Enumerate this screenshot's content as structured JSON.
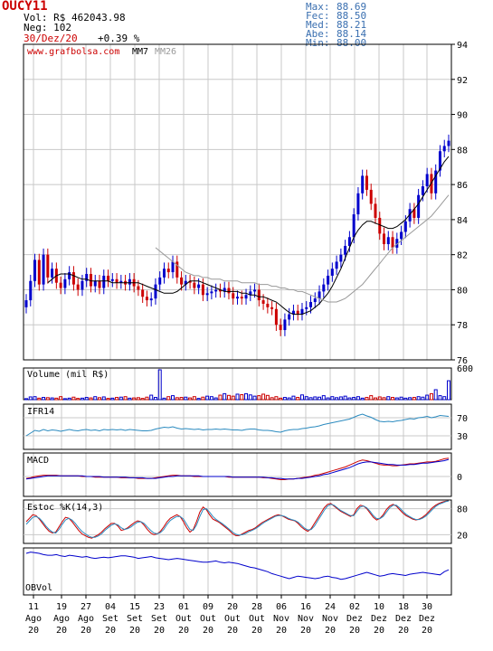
{
  "header": {
    "ticker": "OUCY11",
    "volume": "Vol: R$ 462043.98",
    "trades": "Neg: 102",
    "date": "30/Dez/20",
    "change": "+0.39 %",
    "stats": [
      {
        "label": "Max:",
        "value": "88.69"
      },
      {
        "label": "Fec:",
        "value": "88.50"
      },
      {
        "label": "Med:",
        "value": "88.21"
      },
      {
        "label": "Abe:",
        "value": "88.14"
      },
      {
        "label": "Min:",
        "value": "88.00"
      }
    ]
  },
  "colors": {
    "up": "#0000cc",
    "down": "#cc0000",
    "grid": "#c8c8c8",
    "stats_text": "#3a6fb0",
    "ifr_line": "#2a8abf",
    "mm7": "#000000",
    "mm26": "#999999"
  },
  "chart_data": [
    {
      "type": "candlestick",
      "title": "",
      "watermark": "www.grafbolsa.com",
      "legend": [
        {
          "name": "MM7",
          "color": "#000000"
        },
        {
          "name": "MM26",
          "color": "#999999"
        }
      ],
      "ylim": [
        76,
        94
      ],
      "yticks": [
        "76",
        "78",
        "80",
        "82",
        "84",
        "86",
        "88",
        "90",
        "92",
        "94"
      ],
      "grid": true,
      "x_labels": [
        {
          "day": "11",
          "month": "Ago",
          "year": "20"
        },
        {
          "day": "19",
          "month": "Ago",
          "year": "20"
        },
        {
          "day": "27",
          "month": "Ago",
          "year": "20"
        },
        {
          "day": "04",
          "month": "Set",
          "year": "20"
        },
        {
          "day": "15",
          "month": "Set",
          "year": "20"
        },
        {
          "day": "23",
          "month": "Set",
          "year": "20"
        },
        {
          "day": "01",
          "month": "Out",
          "year": "20"
        },
        {
          "day": "09",
          "month": "Out",
          "year": "20"
        },
        {
          "day": "20",
          "month": "Out",
          "year": "20"
        },
        {
          "day": "28",
          "month": "Out",
          "year": "20"
        },
        {
          "day": "06",
          "month": "Nov",
          "year": "20"
        },
        {
          "day": "16",
          "month": "Nov",
          "year": "20"
        },
        {
          "day": "24",
          "month": "Nov",
          "year": "20"
        },
        {
          "day": "02",
          "month": "Dez",
          "year": "20"
        },
        {
          "day": "10",
          "month": "Dez",
          "year": "20"
        },
        {
          "day": "18",
          "month": "Dez",
          "year": "20"
        },
        {
          "day": "30",
          "month": "Dez",
          "year": "20"
        }
      ],
      "closes": [
        79.4,
        80.5,
        81.7,
        80.3,
        82.0,
        80.7,
        81.2,
        80.4,
        80.1,
        80.6,
        81.0,
        80.3,
        80.0,
        80.5,
        80.9,
        80.2,
        80.5,
        80.1,
        80.8,
        80.5,
        80.6,
        80.4,
        80.5,
        80.3,
        80.6,
        80.2,
        80.0,
        79.6,
        79.4,
        79.5,
        80.3,
        80.7,
        81.2,
        81.0,
        81.6,
        80.7,
        80.3,
        80.5,
        80.4,
        80.1,
        80.3,
        79.7,
        79.8,
        79.9,
        80.0,
        79.9,
        80.1,
        79.8,
        79.5,
        79.6,
        79.5,
        79.7,
        79.9,
        80.0,
        79.4,
        79.2,
        79.0,
        78.9,
        78.0,
        77.7,
        78.3,
        78.6,
        78.8,
        78.6,
        78.9,
        79.0,
        79.3,
        79.5,
        79.9,
        80.3,
        80.8,
        81.2,
        81.6,
        82.0,
        82.5,
        83.0,
        84.3,
        85.5,
        86.5,
        85.7,
        84.9,
        84.1,
        83.2,
        82.6,
        83.0,
        82.4,
        82.9,
        83.3,
        83.9,
        84.6,
        84.1,
        85.4,
        85.9,
        86.6,
        85.5,
        86.8,
        87.9,
        88.2,
        88.5
      ],
      "mm7": [
        80.4,
        80.6,
        80.8,
        80.9,
        80.9,
        80.9,
        80.8,
        80.7,
        80.6,
        80.6,
        80.5,
        80.5,
        80.5,
        80.5,
        80.5,
        80.4,
        80.4,
        80.4,
        80.4,
        80.4,
        80.4,
        80.4,
        80.3,
        80.2,
        80.1,
        80.0,
        79.9,
        79.8,
        79.8,
        79.8,
        79.9,
        80.1,
        80.3,
        80.5,
        80.5,
        80.5,
        80.4,
        80.3,
        80.2,
        80.1,
        80.0,
        79.9,
        79.9,
        79.9,
        79.9,
        79.8,
        79.8,
        79.7,
        79.7,
        79.6,
        79.6,
        79.5,
        79.4,
        79.3,
        79.1,
        78.9,
        78.7,
        78.6,
        78.6,
        78.6,
        78.7,
        78.8,
        79.0,
        79.2,
        79.5,
        79.8,
        80.2,
        80.7,
        81.2,
        81.8,
        82.4,
        83.0,
        83.4,
        83.7,
        83.9,
        83.9,
        83.8,
        83.7,
        83.6,
        83.5,
        83.5,
        83.6,
        83.8,
        84.0,
        84.3,
        84.6,
        84.9,
        85.3,
        85.7,
        86.1,
        86.5,
        86.9,
        87.3,
        87.6
      ],
      "mm26": [
        82.4,
        82.2,
        82.0,
        81.8,
        81.6,
        81.4,
        81.2,
        81.0,
        80.9,
        80.8,
        80.8,
        80.7,
        80.7,
        80.6,
        80.6,
        80.6,
        80.5,
        80.5,
        80.5,
        80.5,
        80.4,
        80.4,
        80.4,
        80.4,
        80.3,
        80.3,
        80.3,
        80.2,
        80.2,
        80.1,
        80.1,
        80.0,
        80.0,
        79.9,
        79.9,
        79.8,
        79.7,
        79.6,
        79.5,
        79.4,
        79.3,
        79.3,
        79.3,
        79.4,
        79.5,
        79.7,
        79.9,
        80.1,
        80.3,
        80.6,
        80.9,
        81.2,
        81.5,
        81.8,
        82.1,
        82.4,
        82.6,
        82.8,
        83.0,
        83.2,
        83.4,
        83.6,
        83.8,
        84.0,
        84.2,
        84.5,
        84.8,
        85.1,
        85.4
      ]
    },
    {
      "type": "bar",
      "title": "Volume (mil R$)",
      "yticks": [
        "600"
      ],
      "ylim": [
        0,
        600
      ],
      "values": [
        20,
        55,
        60,
        30,
        45,
        40,
        35,
        30,
        60,
        20,
        30,
        50,
        25,
        30,
        45,
        35,
        60,
        40,
        55,
        25,
        30,
        45,
        50,
        60,
        30,
        35,
        40,
        25,
        50,
        90,
        45,
        600,
        30,
        60,
        80,
        40,
        45,
        50,
        35,
        60,
        25,
        50,
        70,
        60,
        35,
        90,
        120,
        85,
        70,
        110,
        100,
        120,
        95,
        70,
        80,
        110,
        85,
        40,
        60,
        30,
        45,
        35,
        70,
        45,
        95,
        60,
        40,
        55,
        50,
        80,
        35,
        60,
        40,
        55,
        70,
        35,
        45,
        60,
        30,
        45,
        80,
        35,
        55,
        40,
        60,
        45,
        35,
        50,
        30,
        40,
        45,
        60,
        50,
        90,
        120,
        200,
        80,
        60,
        380
      ]
    },
    {
      "type": "line",
      "title": "IFR14",
      "yticks": [
        "30",
        "70"
      ],
      "ylim": [
        0,
        100
      ],
      "values": [
        30,
        36,
        42,
        40,
        44,
        41,
        43,
        42,
        40,
        42,
        44,
        42,
        41,
        43,
        44,
        42,
        43,
        41,
        44,
        43,
        44,
        43,
        44,
        42,
        44,
        43,
        42,
        41,
        41,
        42,
        45,
        47,
        49,
        48,
        50,
        47,
        45,
        46,
        45,
        44,
        45,
        43,
        44,
        44,
        45,
        44,
        45,
        44,
        43,
        43,
        42,
        44,
        45,
        45,
        43,
        42,
        42,
        41,
        39,
        38,
        41,
        43,
        44,
        44,
        46,
        47,
        49,
        50,
        52,
        55,
        57,
        59,
        61,
        63,
        65,
        67,
        71,
        75,
        78,
        74,
        71,
        66,
        62,
        61,
        62,
        61,
        63,
        64,
        66,
        68,
        67,
        70,
        71,
        73,
        70,
        72,
        75,
        74,
        73
      ]
    },
    {
      "type": "line",
      "title": "MACD",
      "yticks": [
        "0"
      ],
      "series": [
        {
          "values": [
            -0.3,
            -0.2,
            0.0,
            0.1,
            0.2,
            0.2,
            0.2,
            0.2,
            0.1,
            0.1,
            0.1,
            0.1,
            0.1,
            0.0,
            0.0,
            0.0,
            -0.1,
            -0.1,
            -0.1,
            -0.1,
            -0.1,
            -0.1,
            -0.2,
            -0.2,
            -0.2,
            -0.2,
            -0.3,
            -0.3,
            -0.3,
            -0.3,
            -0.2,
            -0.1,
            0.0,
            0.1,
            0.2,
            0.2,
            0.1,
            0.1,
            0.1,
            0.0,
            0.0,
            0.0,
            0.0,
            0.0,
            0.0,
            0.0,
            0.0,
            -0.1,
            -0.1,
            -0.1,
            -0.1,
            -0.1,
            -0.1,
            -0.1,
            -0.1,
            -0.2,
            -0.2,
            -0.3,
            -0.4,
            -0.5,
            -0.5,
            -0.4,
            -0.4,
            -0.3,
            -0.2,
            -0.1,
            0.0,
            0.2,
            0.3,
            0.5,
            0.7,
            0.9,
            1.1,
            1.3,
            1.5,
            1.8,
            2.1,
            2.4,
            2.6,
            2.5,
            2.3,
            2.1,
            1.9,
            1.8,
            1.8,
            1.7,
            1.7,
            1.8,
            1.9,
            2.0,
            2.0,
            2.1,
            2.2,
            2.3,
            2.3,
            2.4,
            2.6,
            2.8,
            2.9
          ]
        },
        {
          "values": [
            -0.4,
            -0.3,
            -0.2,
            -0.1,
            0.0,
            0.1,
            0.1,
            0.1,
            0.1,
            0.1,
            0.1,
            0.1,
            0.1,
            0.1,
            0.0,
            0.0,
            0.0,
            0.0,
            -0.1,
            -0.1,
            -0.1,
            -0.1,
            -0.1,
            -0.1,
            -0.2,
            -0.2,
            -0.2,
            -0.2,
            -0.3,
            -0.3,
            -0.3,
            -0.2,
            -0.1,
            0.0,
            0.0,
            0.1,
            0.1,
            0.1,
            0.1,
            0.1,
            0.1,
            0.0,
            0.0,
            0.0,
            0.0,
            0.0,
            0.0,
            0.0,
            -0.1,
            -0.1,
            -0.1,
            -0.1,
            -0.1,
            -0.1,
            -0.1,
            -0.1,
            -0.2,
            -0.2,
            -0.3,
            -0.3,
            -0.4,
            -0.4,
            -0.4,
            -0.3,
            -0.3,
            -0.2,
            -0.1,
            0.0,
            0.1,
            0.3,
            0.4,
            0.6,
            0.8,
            1.0,
            1.2,
            1.4,
            1.7,
            2.0,
            2.2,
            2.3,
            2.3,
            2.2,
            2.1,
            2.0,
            1.9,
            1.9,
            1.8,
            1.8,
            1.8,
            1.9,
            1.9,
            2.0,
            2.1,
            2.1,
            2.2,
            2.3,
            2.4,
            2.5,
            2.7
          ]
        }
      ]
    },
    {
      "type": "line",
      "title": "Estoc %K(14,3)",
      "yticks": [
        "20",
        "80"
      ],
      "ylim": [
        0,
        100
      ],
      "series": [
        {
          "values": [
            50,
            58,
            66,
            64,
            56,
            46,
            36,
            28,
            24,
            26,
            38,
            50,
            60,
            58,
            50,
            40,
            30,
            22,
            18,
            14,
            12,
            16,
            20,
            26,
            34,
            40,
            46,
            46,
            40,
            30,
            32,
            36,
            42,
            48,
            52,
            50,
            42,
            32,
            24,
            20,
            22,
            28,
            38,
            50,
            58,
            62,
            66,
            62,
            50,
            36,
            26,
            32,
            50,
            72,
            84,
            78,
            66,
            56,
            52,
            48,
            42,
            36,
            30,
            22,
            18,
            18,
            22,
            26,
            30,
            32,
            36,
            42,
            48,
            52,
            56,
            60,
            64,
            66,
            64,
            60,
            56,
            54,
            52,
            46,
            38,
            32,
            28,
            34,
            46,
            58,
            70,
            82,
            90,
            92,
            86,
            80,
            74,
            70,
            66,
            62,
            66,
            80,
            88,
            86,
            80,
            70,
            60,
            54,
            58,
            66,
            78,
            86,
            90,
            86,
            78,
            70,
            64,
            60,
            56,
            54,
            56,
            60,
            66,
            74,
            82,
            88,
            92,
            95,
            97,
            98
          ]
        },
        {
          "values": [
            44,
            52,
            60,
            62,
            58,
            50,
            40,
            32,
            26,
            24,
            32,
            44,
            54,
            58,
            54,
            46,
            36,
            28,
            22,
            17,
            14,
            14,
            17,
            22,
            30,
            36,
            42,
            45,
            43,
            36,
            32,
            34,
            38,
            44,
            49,
            50,
            46,
            38,
            30,
            24,
            22,
            25,
            32,
            44,
            53,
            58,
            62,
            62,
            56,
            44,
            32,
            30,
            42,
            62,
            78,
            80,
            72,
            62,
            55,
            50,
            45,
            39,
            33,
            26,
            21,
            19,
            20,
            23,
            27,
            30,
            34,
            39,
            45,
            50,
            54,
            58,
            62,
            64,
            64,
            62,
            58,
            55,
            53,
            49,
            42,
            35,
            31,
            32,
            40,
            52,
            64,
            76,
            86,
            90,
            88,
            82,
            76,
            72,
            68,
            64,
            64,
            74,
            84,
            86,
            82,
            74,
            64,
            57,
            57,
            62,
            72,
            82,
            88,
            88,
            82,
            74,
            67,
            62,
            58,
            55,
            55,
            58,
            63,
            70,
            78,
            85,
            90,
            93,
            96,
            98
          ]
        }
      ]
    },
    {
      "type": "line",
      "title": "OBVol",
      "values": [
        60,
        62,
        61,
        60,
        58,
        57,
        57,
        58,
        56,
        55,
        57,
        56,
        55,
        54,
        55,
        53,
        52,
        53,
        54,
        53,
        54,
        55,
        56,
        56,
        55,
        54,
        52,
        53,
        54,
        55,
        53,
        52,
        51,
        50,
        51,
        52,
        51,
        50,
        49,
        48,
        47,
        46,
        46,
        47,
        48,
        46,
        45,
        46,
        45,
        44,
        42,
        40,
        38,
        37,
        35,
        33,
        31,
        28,
        26,
        24,
        22,
        20,
        22,
        24,
        23,
        22,
        21,
        20,
        21,
        23,
        24,
        22,
        21,
        19,
        20,
        22,
        24,
        26,
        28,
        30,
        28,
        26,
        24,
        25,
        27,
        28,
        27,
        26,
        25,
        27,
        28,
        29,
        30,
        29,
        28,
        27,
        26,
        31,
        34
      ]
    }
  ]
}
